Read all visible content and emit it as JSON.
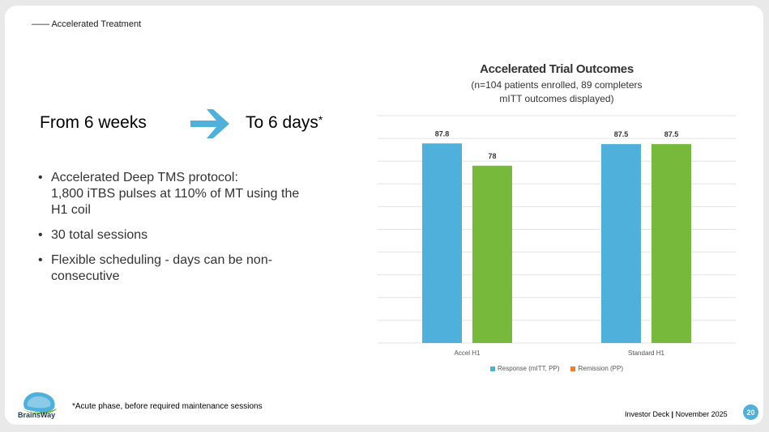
{
  "header": {
    "section_label": "—— Accelerated Treatment"
  },
  "headline": {
    "from": "From 6 weeks",
    "to": "To 6 days",
    "to_marker": "*"
  },
  "bullets": [
    {
      "lines": [
        "Accelerated Deep TMS protocol:",
        "1,800 iTBS pulses at 110% of MT using the",
        "H1 coil"
      ]
    },
    {
      "lines": [
        "30 total sessions"
      ]
    },
    {
      "lines": [
        "Flexible scheduling - days can be non-",
        "consecutive"
      ]
    }
  ],
  "footnote": "*Acute phase, before required maintenance sessions",
  "footer": {
    "deck": "Investor Deck",
    "separator": "|",
    "date": "November 2025",
    "page": "20",
    "logo_text": "BrainsWay"
  },
  "colors": {
    "response": "#4fb0dc",
    "remission": "#77b93a",
    "legend_remission": "#ed7d31",
    "arrow": "#4fb0dc"
  },
  "chart_data": {
    "type": "bar",
    "title": "Accelerated Trial Outcomes",
    "subtitle_lines": [
      "(n=104 patients enrolled, 89 completers",
      "mITT outcomes displayed)"
    ],
    "categories": [
      "Accel H1",
      "Standard H1"
    ],
    "series": [
      {
        "name": "Response (mITT, PP)",
        "values": [
          87.8,
          87.5
        ],
        "labels": [
          "87.8",
          "87.5"
        ]
      },
      {
        "name": "Remission (PP)",
        "values": [
          78,
          87.5
        ],
        "labels": [
          "78",
          "87.5"
        ]
      }
    ],
    "ylim": [
      0,
      100
    ],
    "grid": true,
    "legend_position": "bottom"
  }
}
